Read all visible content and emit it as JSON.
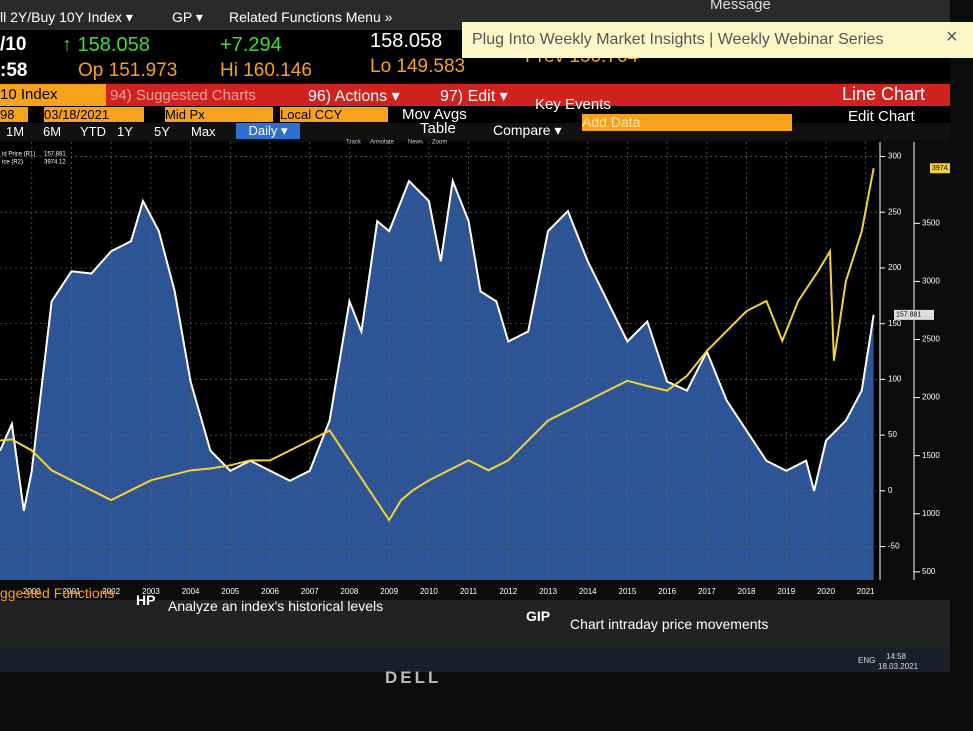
{
  "header": {
    "security": "ll 2Y/Buy 10Y Index ▾",
    "gp": "GP ▾",
    "menu": "Related Functions Menu »",
    "message": "Message"
  },
  "banner": {
    "text": "Plug Into Weekly Market Insights | Weekly Webinar Series",
    "close": "×"
  },
  "quote": {
    "ticker": "/10",
    "ticker_tail": ":58",
    "last": "↑ 158.058",
    "change": "+7.294",
    "price": "158.058",
    "open": "Op 151.973",
    "high": "Hi 160.146",
    "low": "Lo 149.583",
    "prev": "Prev 150.764"
  },
  "command_bar": {
    "index": "10 Index",
    "suggested": "94) Suggested Charts",
    "actions": "96) Actions ▾",
    "edit": "97) Edit ▾",
    "view": "Line Chart"
  },
  "settings": {
    "field": "98",
    "date": "03/18/2021",
    "price_type": "Mid Px",
    "currency": "Local CCY",
    "mov_avgs": "Mov Avgs",
    "key_events": "Key Events"
  },
  "range_buttons": [
    "1M",
    "6M",
    "YTD",
    "1Y",
    "5Y",
    "Max"
  ],
  "periodicity": "Daily ▾",
  "tools": {
    "table": "Table",
    "compare": "Compare ▾",
    "add_data": "Add Data",
    "edit_chart": "Edit Chart",
    "track": "Track",
    "annotate": "Annotate",
    "news": "News",
    "zoom": "Zoom"
  },
  "chart_data": {
    "type": "line",
    "grid": true,
    "xlim": [
      1999.2,
      2021.36
    ],
    "xticks": [
      2000,
      2001,
      2002,
      2003,
      2004,
      2005,
      2006,
      2007,
      2008,
      2009,
      2010,
      2011,
      2012,
      2013,
      2014,
      2015,
      2016,
      2017,
      2018,
      2019,
      2020,
      2021
    ],
    "ylim": [
      -80,
      313
    ],
    "yticks": [
      -50,
      0,
      50,
      100,
      150,
      200,
      250,
      300
    ],
    "y2lim": [
      430,
      4200
    ],
    "y2ticks": [
      500,
      1000,
      1500,
      2000,
      2500,
      3000,
      3500
    ],
    "series": [
      {
        "name": "id Price (R1)",
        "last_value": 157.881,
        "color": "#ffffff",
        "fill": "#2d5596",
        "x": [
          1999.2,
          1999.5,
          1999.8,
          2000.0,
          2000.5,
          2001.0,
          2001.5,
          2002.0,
          2002.5,
          2002.8,
          2003.2,
          2003.6,
          2004.0,
          2004.5,
          2005.0,
          2005.5,
          2006.0,
          2006.5,
          2007.0,
          2007.5,
          2008.0,
          2008.3,
          2008.7,
          2009.0,
          2009.5,
          2010.0,
          2010.3,
          2010.6,
          2011.0,
          2011.3,
          2011.7,
          2012.0,
          2012.5,
          2013.0,
          2013.5,
          2014.0,
          2014.5,
          2015.0,
          2015.5,
          2016.0,
          2016.5,
          2017.0,
          2017.5,
          2018.0,
          2018.5,
          2019.0,
          2019.5,
          2019.7,
          2020.0,
          2020.5,
          2020.9,
          2021.2
        ],
        "values": [
          36,
          60,
          -18,
          18,
          170,
          197,
          195,
          215,
          224,
          260,
          233,
          179,
          98,
          36,
          18,
          27,
          18,
          9,
          18,
          63,
          170,
          143,
          242,
          233,
          278,
          260,
          206,
          278,
          242,
          179,
          170,
          134,
          143,
          233,
          251,
          206,
          170,
          134,
          152,
          98,
          90,
          125,
          81,
          54,
          27,
          18,
          27,
          0,
          45,
          63,
          90,
          157.881
        ]
      },
      {
        "name": "ice (R2)",
        "last_value": 3974.12,
        "color": "#f2d13a",
        "axis": "y2",
        "x": [
          1999.2,
          1999.5,
          2000.0,
          2000.5,
          2001.0,
          2001.5,
          2002.0,
          2002.5,
          2003.0,
          2003.5,
          2004.0,
          2004.5,
          2005.0,
          2005.5,
          2006.0,
          2006.5,
          2007.0,
          2007.5,
          2008.0,
          2008.5,
          2009.0,
          2009.3,
          2009.6,
          2010.0,
          2010.5,
          2011.0,
          2011.5,
          2012.0,
          2012.5,
          2013.0,
          2013.5,
          2014.0,
          2014.5,
          2015.0,
          2015.5,
          2016.0,
          2016.5,
          2017.0,
          2017.5,
          2018.0,
          2018.5,
          2018.9,
          2019.3,
          2019.8,
          2020.1,
          2020.2,
          2020.5,
          2020.9,
          2021.2
        ],
        "values": [
          1631,
          1640,
          1545,
          1374,
          1288,
          1203,
          1117,
          1203,
          1288,
          1331,
          1374,
          1390,
          1417,
          1460,
          1460,
          1545,
          1631,
          1717,
          1460,
          1203,
          946,
          1117,
          1203,
          1288,
          1374,
          1460,
          1374,
          1460,
          1631,
          1802,
          1888,
          1974,
          2060,
          2145,
          2100,
          2060,
          2188,
          2402,
          2574,
          2745,
          2831,
          2488,
          2831,
          3088,
          3259,
          2317,
          3002,
          3431,
          3974.12
        ]
      }
    ]
  },
  "footer": {
    "suggested": "ggested Functions",
    "hp_code": "HP",
    "hp_text": "Analyze an index's historical levels",
    "gip_code": "GIP",
    "gip_text": "Chart intraday price movements"
  },
  "taskbar": {
    "lang": "ENG",
    "time": "14:58",
    "date": "18.03.2021"
  },
  "monitor": {
    "brand": "DELL"
  }
}
